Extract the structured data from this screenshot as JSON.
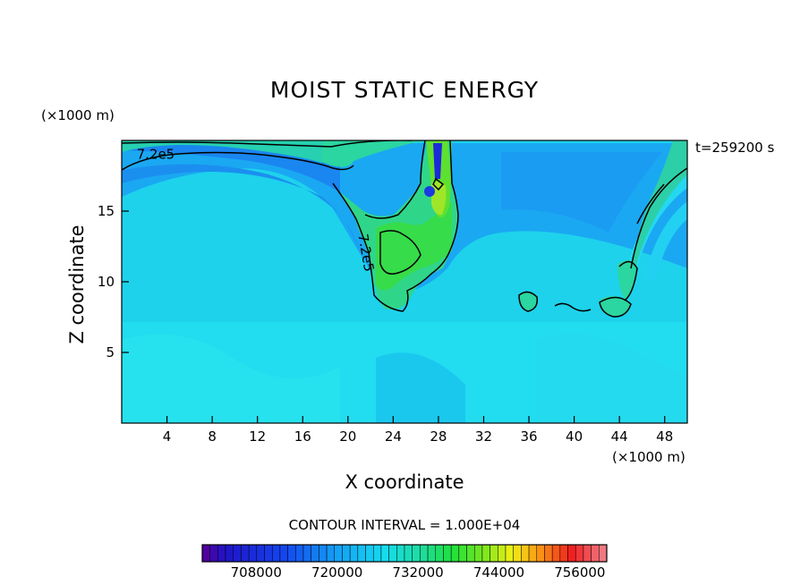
{
  "chart_data": {
    "type": "heatmap",
    "title": "MOIST STATIC ENERGY",
    "xlabel": "X coordinate",
    "ylabel": "Z coordinate",
    "x_unit": "(×1000 m)",
    "y_unit": "(×1000 m)",
    "time_label": "t=259200 s",
    "xlim": [
      0,
      50
    ],
    "ylim": [
      0,
      20
    ],
    "x_ticks": [
      4,
      8,
      12,
      16,
      20,
      24,
      28,
      32,
      36,
      40,
      44,
      48
    ],
    "y_ticks": [
      5,
      10,
      15
    ],
    "contour_interval": "CONTOUR INTERVAL = 1.000E+04",
    "contour_labels": [
      {
        "text": "7.2e5",
        "x": 3.0,
        "y": 18.7
      },
      {
        "text": "7.2e5",
        "x": 21.2,
        "y": 12.0
      }
    ],
    "colorbar": {
      "min": 700000,
      "max": 760000,
      "ticks": [
        708000,
        720000,
        732000,
        744000,
        756000
      ],
      "tick_labels": [
        "708000",
        "720000",
        "732000",
        "744000",
        "756000"
      ]
    },
    "colors": {
      "background": "#1ed4f0",
      "light": "#2ce6f2",
      "mid_blue": "#1aa8f4",
      "blue": "#1a78f2",
      "green": "#2bd88a",
      "bright_green": "#36e23a",
      "yellow_green": "#9ee828",
      "dark_blue": "#1c2ad8"
    }
  }
}
